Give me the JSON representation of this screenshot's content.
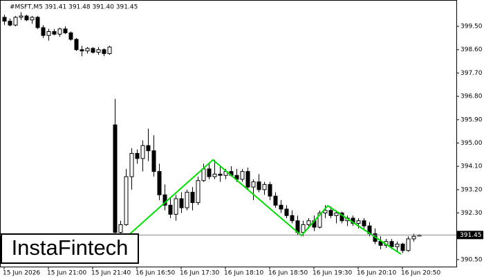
{
  "chart_data": {
    "type": "candlestick",
    "title": "#MSFT,M5  391.41 391.48 391.40 391.45",
    "watermark": "InstaFintech",
    "current_price": 391.45,
    "ylim": [
      390.23,
      400.41
    ],
    "yticks": [
      {
        "value": 390.5,
        "label": "390.50"
      },
      {
        "value": 392.3,
        "label": "392.30"
      },
      {
        "value": 393.2,
        "label": "393.20"
      },
      {
        "value": 394.1,
        "label": "394.10"
      },
      {
        "value": 395.0,
        "label": "395.00"
      },
      {
        "value": 395.9,
        "label": "395.90"
      },
      {
        "value": 396.8,
        "label": "396.80"
      },
      {
        "value": 397.7,
        "label": "397.70"
      },
      {
        "value": 398.6,
        "label": "398.60"
      },
      {
        "value": 399.5,
        "label": "399.50"
      }
    ],
    "categories": [
      "15 Jun 2026",
      null,
      null,
      null,
      null,
      null,
      null,
      null,
      "15 Jun 21:00",
      null,
      null,
      null,
      null,
      null,
      null,
      null,
      "15 Jun 21:40",
      null,
      null,
      null,
      null,
      null,
      null,
      null,
      "16 Jun 16:50",
      null,
      null,
      null,
      null,
      null,
      null,
      null,
      "16 Jun 17:30",
      null,
      null,
      null,
      null,
      null,
      null,
      null,
      "16 Jun 18:10",
      null,
      null,
      null,
      null,
      null,
      null,
      null,
      "16 Jun 18:50",
      null,
      null,
      null,
      null,
      null,
      null,
      null,
      "16 Jun 19:30",
      null,
      null,
      null,
      null,
      null,
      null,
      null,
      "16 Jun 20:10",
      null,
      null,
      null,
      null,
      null,
      null,
      null,
      "16 Jun 20:50",
      null,
      null,
      null
    ],
    "open": [
      399.85,
      399.7,
      399.55,
      399.85,
      399.9,
      399.75,
      399.85,
      399.45,
      399.15,
      399.3,
      399.2,
      399.4,
      399.25,
      399.0,
      398.6,
      398.55,
      398.65,
      398.5,
      398.6,
      398.45,
      395.7,
      391.55,
      391.85,
      393.7,
      394.6,
      394.4,
      394.9,
      394.7,
      393.9,
      393.0,
      392.6,
      392.25,
      392.85,
      392.5,
      393.1,
      392.7,
      393.55,
      394.0,
      393.7,
      393.8,
      393.75,
      393.9,
      393.75,
      393.6,
      393.9,
      393.3,
      393.5,
      393.2,
      393.4,
      392.95,
      392.6,
      392.45,
      392.2,
      392.0,
      391.55,
      391.85,
      392.0,
      391.75,
      392.3,
      392.4,
      392.2,
      392.3,
      392.0,
      392.1,
      391.9,
      392.0,
      391.8,
      391.5,
      391.2,
      391.05,
      391.2,
      391.0,
      391.1,
      390.85,
      391.3,
      391.41
    ],
    "high": [
      399.95,
      399.8,
      399.9,
      400.05,
      399.95,
      399.9,
      399.9,
      399.55,
      399.4,
      399.4,
      399.45,
      399.5,
      399.3,
      399.05,
      398.75,
      398.7,
      398.7,
      398.7,
      398.65,
      398.75,
      396.7,
      392.0,
      394.0,
      394.8,
      394.75,
      395.1,
      395.55,
      395.3,
      394.2,
      393.4,
      392.9,
      393.0,
      393.1,
      393.2,
      393.3,
      393.7,
      394.2,
      394.2,
      394.35,
      394.1,
      394.0,
      394.1,
      394.0,
      394.0,
      394.05,
      393.6,
      393.8,
      393.5,
      393.5,
      393.1,
      392.8,
      392.6,
      392.4,
      392.2,
      392.0,
      392.1,
      392.2,
      392.4,
      392.6,
      392.55,
      392.4,
      392.35,
      392.2,
      392.2,
      392.1,
      392.1,
      391.95,
      391.7,
      391.4,
      391.3,
      391.3,
      391.2,
      391.15,
      391.4,
      391.5,
      391.48
    ],
    "low": [
      399.55,
      399.5,
      399.5,
      399.75,
      399.7,
      399.6,
      399.4,
      399.05,
      398.95,
      399.15,
      399.1,
      399.2,
      398.95,
      398.55,
      398.35,
      398.45,
      398.45,
      398.4,
      398.35,
      398.4,
      391.3,
      391.35,
      391.8,
      393.2,
      394.2,
      393.9,
      394.3,
      393.7,
      392.8,
      392.4,
      392.1,
      392.0,
      392.3,
      392.4,
      392.4,
      392.6,
      393.5,
      393.6,
      393.6,
      393.5,
      393.6,
      393.7,
      393.5,
      393.5,
      393.2,
      392.8,
      393.1,
      393.0,
      392.8,
      392.5,
      392.3,
      392.1,
      391.9,
      391.45,
      391.4,
      391.7,
      391.6,
      391.7,
      392.1,
      392.1,
      391.9,
      391.9,
      391.8,
      391.8,
      391.7,
      391.7,
      391.4,
      391.1,
      390.9,
      390.95,
      390.9,
      390.8,
      390.75,
      390.8,
      391.2,
      391.4
    ],
    "close": [
      399.7,
      399.55,
      399.85,
      399.9,
      399.75,
      399.85,
      399.45,
      399.15,
      399.3,
      399.2,
      399.4,
      399.25,
      399.0,
      398.6,
      398.55,
      398.65,
      398.5,
      398.6,
      398.45,
      398.7,
      391.55,
      391.85,
      393.7,
      394.6,
      394.4,
      394.9,
      394.7,
      393.9,
      393.0,
      392.6,
      392.25,
      392.85,
      392.5,
      393.1,
      392.7,
      393.55,
      394.0,
      393.7,
      393.8,
      393.75,
      393.9,
      393.75,
      393.6,
      393.9,
      393.3,
      393.5,
      393.2,
      393.4,
      392.95,
      392.6,
      392.45,
      392.2,
      392.0,
      391.55,
      391.85,
      392.0,
      391.75,
      392.3,
      392.4,
      392.2,
      392.3,
      392.0,
      392.1,
      391.9,
      392.0,
      391.8,
      391.5,
      391.2,
      391.05,
      391.2,
      391.0,
      391.1,
      390.85,
      391.3,
      391.4,
      391.45
    ],
    "pattern": {
      "color": "#00e000",
      "x": [
        22.4,
        37.75,
        53.75,
        58.5,
        71.75
      ],
      "y": [
        391.43,
        394.35,
        391.43,
        392.58,
        390.71
      ]
    }
  }
}
